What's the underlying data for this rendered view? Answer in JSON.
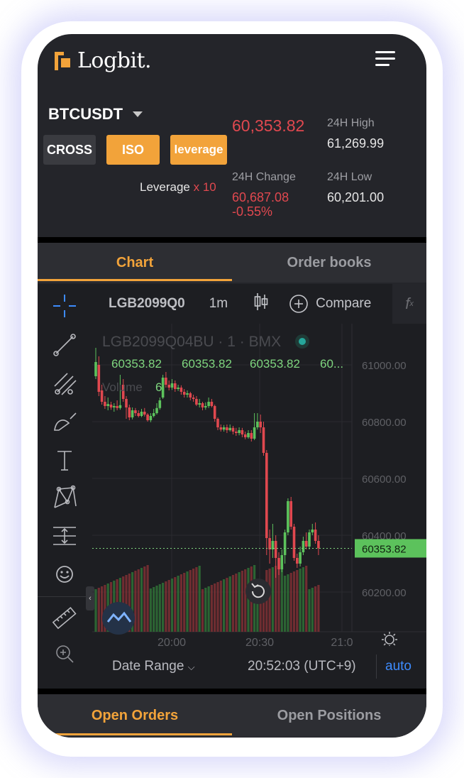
{
  "header": {
    "logo_text": "Logbit.",
    "pair": "BTCUSDT",
    "buttons": {
      "cross": "CROSS",
      "iso": "ISO",
      "leverage": "leverage"
    },
    "leverage_label": "Leverage",
    "leverage_value": "x 10",
    "last_price": "60,353.82",
    "high_label": "24H High",
    "high_value": "61,269.99",
    "change_label": "24H Change",
    "change_value": "60,687.08",
    "change_pct": "-0.55%",
    "low_label": "24H Low",
    "low_value": "60,201.00"
  },
  "tabs": [
    {
      "label": "Chart",
      "active": true
    },
    {
      "label": "Order books",
      "active": false
    }
  ],
  "chart_toolbar": {
    "symbol": "LGB2099Q0",
    "interval": "1m",
    "compare": "Compare",
    "fx": "f"
  },
  "chart_legend": {
    "series_title": "LGB2099Q04BU · 1 · BMX",
    "ohlc": [
      "60353.82",
      "60353.82",
      "60353.82",
      "60..."
    ],
    "volume_label": "Volume",
    "volume_value": "6"
  },
  "chart_data": {
    "type": "candlestick",
    "price_axis_ticks": [
      "61000.00",
      "60800.00",
      "60600.00",
      "60400.00",
      "60200.00"
    ],
    "time_axis_ticks": [
      "20:00",
      "20:30",
      "21:0"
    ],
    "ylim": [
      60150,
      61120
    ],
    "last_price_label": "60353.82",
    "candles": [
      {
        "o": 60960,
        "c": 61010,
        "h": 61060,
        "l": 60950
      },
      {
        "o": 61000,
        "c": 60905,
        "h": 61030,
        "l": 60890
      },
      {
        "o": 60910,
        "c": 60870,
        "h": 60930,
        "l": 60860
      },
      {
        "o": 60870,
        "c": 60855,
        "h": 60890,
        "l": 60845
      },
      {
        "o": 60855,
        "c": 60862,
        "h": 60885,
        "l": 60840
      },
      {
        "o": 60860,
        "c": 60850,
        "h": 60870,
        "l": 60842
      },
      {
        "o": 60850,
        "c": 60855,
        "h": 60865,
        "l": 60835
      },
      {
        "o": 60855,
        "c": 60848,
        "h": 60875,
        "l": 60840
      },
      {
        "o": 60848,
        "c": 60858,
        "h": 60965,
        "l": 60842
      },
      {
        "o": 60930,
        "c": 60880,
        "h": 60950,
        "l": 60870
      },
      {
        "o": 60880,
        "c": 60850,
        "h": 60890,
        "l": 60810
      },
      {
        "o": 60850,
        "c": 60815,
        "h": 60860,
        "l": 60805
      },
      {
        "o": 60815,
        "c": 60840,
        "h": 60850,
        "l": 60808
      },
      {
        "o": 60840,
        "c": 60830,
        "h": 60848,
        "l": 60820
      },
      {
        "o": 60830,
        "c": 60820,
        "h": 60840,
        "l": 60815
      },
      {
        "o": 60820,
        "c": 60835,
        "h": 60845,
        "l": 60816
      },
      {
        "o": 60835,
        "c": 60825,
        "h": 60848,
        "l": 60818
      },
      {
        "o": 60825,
        "c": 60805,
        "h": 60830,
        "l": 60800
      },
      {
        "o": 60805,
        "c": 60820,
        "h": 60830,
        "l": 60798
      },
      {
        "o": 60820,
        "c": 60830,
        "h": 60845,
        "l": 60815
      },
      {
        "o": 60830,
        "c": 60848,
        "h": 60865,
        "l": 60825
      },
      {
        "o": 60848,
        "c": 60875,
        "h": 60885,
        "l": 60842
      },
      {
        "o": 60885,
        "c": 60955,
        "h": 60965,
        "l": 60880
      },
      {
        "o": 60955,
        "c": 60930,
        "h": 60975,
        "l": 60920
      },
      {
        "o": 60930,
        "c": 60920,
        "h": 60945,
        "l": 60910
      },
      {
        "o": 60920,
        "c": 60935,
        "h": 60950,
        "l": 60912
      },
      {
        "o": 60935,
        "c": 60915,
        "h": 60945,
        "l": 60905
      },
      {
        "o": 60915,
        "c": 60920,
        "h": 60930,
        "l": 60908
      },
      {
        "o": 60920,
        "c": 60905,
        "h": 60928,
        "l": 60895
      },
      {
        "o": 60905,
        "c": 60895,
        "h": 60915,
        "l": 60885
      },
      {
        "o": 60895,
        "c": 60900,
        "h": 60910,
        "l": 60885
      },
      {
        "o": 60900,
        "c": 60885,
        "h": 60905,
        "l": 60875
      },
      {
        "o": 60885,
        "c": 60880,
        "h": 60895,
        "l": 60870
      },
      {
        "o": 60880,
        "c": 60860,
        "h": 60890,
        "l": 60855
      },
      {
        "o": 60860,
        "c": 60865,
        "h": 60880,
        "l": 60850
      },
      {
        "o": 60865,
        "c": 60850,
        "h": 60870,
        "l": 60840
      },
      {
        "o": 60850,
        "c": 60855,
        "h": 60868,
        "l": 60842
      },
      {
        "o": 60855,
        "c": 60870,
        "h": 60885,
        "l": 60848
      },
      {
        "o": 60870,
        "c": 60855,
        "h": 60880,
        "l": 60850
      },
      {
        "o": 60855,
        "c": 60810,
        "h": 60860,
        "l": 60800
      },
      {
        "o": 60810,
        "c": 60780,
        "h": 60815,
        "l": 60770
      },
      {
        "o": 60780,
        "c": 60772,
        "h": 60790,
        "l": 60765
      },
      {
        "o": 60772,
        "c": 60780,
        "h": 60788,
        "l": 60765
      },
      {
        "o": 60780,
        "c": 60770,
        "h": 60790,
        "l": 60760
      },
      {
        "o": 60770,
        "c": 60778,
        "h": 60790,
        "l": 60765
      },
      {
        "o": 60778,
        "c": 60765,
        "h": 60785,
        "l": 60755
      },
      {
        "o": 60765,
        "c": 60760,
        "h": 60778,
        "l": 60750
      },
      {
        "o": 60760,
        "c": 60770,
        "h": 60780,
        "l": 60752
      },
      {
        "o": 60770,
        "c": 60755,
        "h": 60778,
        "l": 60745
      },
      {
        "o": 60755,
        "c": 60745,
        "h": 60765,
        "l": 60738
      },
      {
        "o": 60745,
        "c": 60760,
        "h": 60770,
        "l": 60740
      },
      {
        "o": 60760,
        "c": 60740,
        "h": 60770,
        "l": 60730
      },
      {
        "o": 60740,
        "c": 60780,
        "h": 60830,
        "l": 60735
      },
      {
        "o": 60780,
        "c": 60800,
        "h": 60830,
        "l": 60772
      },
      {
        "o": 60800,
        "c": 60780,
        "h": 60825,
        "l": 60760
      },
      {
        "o": 60780,
        "c": 60690,
        "h": 60800,
        "l": 60680
      },
      {
        "o": 60690,
        "c": 60390,
        "h": 60700,
        "l": 60330
      },
      {
        "o": 60390,
        "c": 60350,
        "h": 60420,
        "l": 60300
      },
      {
        "o": 60350,
        "c": 60380,
        "h": 60440,
        "l": 60320
      },
      {
        "o": 60380,
        "c": 60320,
        "h": 60400,
        "l": 60250
      },
      {
        "o": 60320,
        "c": 60280,
        "h": 60340,
        "l": 60260
      },
      {
        "o": 60280,
        "c": 60330,
        "h": 60350,
        "l": 60270
      },
      {
        "o": 60330,
        "c": 60410,
        "h": 60420,
        "l": 60300
      },
      {
        "o": 60410,
        "c": 60520,
        "h": 60530,
        "l": 60400
      },
      {
        "o": 60520,
        "c": 60430,
        "h": 60535,
        "l": 60420
      },
      {
        "o": 60430,
        "c": 60320,
        "h": 60440,
        "l": 60310
      },
      {
        "o": 60320,
        "c": 60300,
        "h": 60335,
        "l": 60285
      },
      {
        "o": 60300,
        "c": 60340,
        "h": 60360,
        "l": 60290
      },
      {
        "o": 60340,
        "c": 60380,
        "h": 60395,
        "l": 60330
      },
      {
        "o": 60380,
        "c": 60360,
        "h": 60410,
        "l": 60350
      },
      {
        "o": 60360,
        "c": 60410,
        "h": 60420,
        "l": 60350
      },
      {
        "o": 60410,
        "c": 60420,
        "h": 60440,
        "l": 60400
      },
      {
        "o": 60420,
        "c": 60380,
        "h": 60445,
        "l": 60370
      },
      {
        "o": 60380,
        "c": 60354,
        "h": 60400,
        "l": 60330
      }
    ]
  },
  "chart_bottom": {
    "date_range": "Date Range",
    "time": "20:52:03 (UTC+9)",
    "auto": "auto"
  },
  "bottom_tabs": [
    {
      "label": "Open Orders",
      "active": true
    },
    {
      "label": "Open Positions",
      "active": false
    }
  ],
  "icons": {
    "logo": "logbit-logo-icon",
    "menu": "hamburger-menu-icon",
    "crosshair": "crosshair-icon",
    "trendline": "trendline-icon",
    "fib": "fib-icon",
    "brush": "brush-icon",
    "text": "text-icon",
    "pattern": "pattern-icon",
    "measure": "measure-icon",
    "emoji": "smile-icon",
    "ruler": "ruler-icon",
    "zoom": "zoom-in-icon",
    "candle": "candles-icon",
    "add": "plus-circle-icon",
    "settings": "settings-icon",
    "reset": "reset-icon",
    "watermark": "cloud-logo-icon",
    "collapse": "collapse-left-icon"
  },
  "colors": {
    "accent": "#f2a33a",
    "up": "#5cc25c",
    "down": "#e0484f",
    "bg": "#24252a"
  }
}
